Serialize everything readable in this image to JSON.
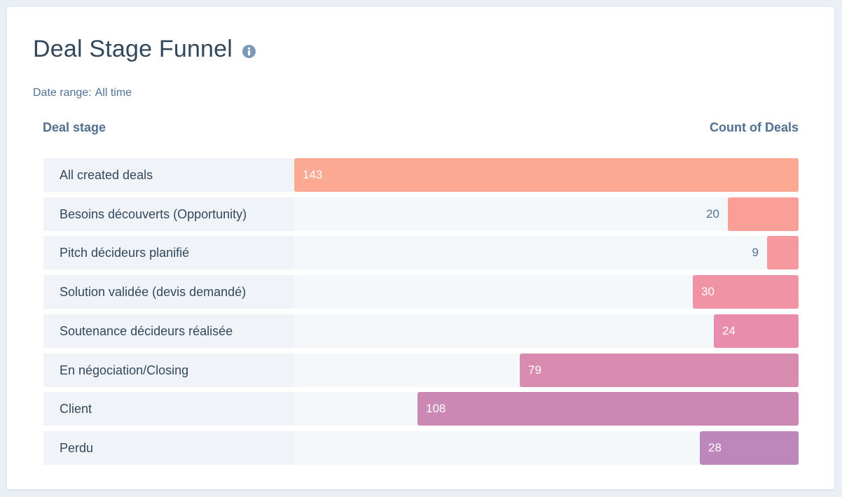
{
  "header": {
    "title": "Deal Stage Funnel",
    "info_icon": "info-circle-icon"
  },
  "filter": {
    "date_range_label": "Date range:",
    "date_range_value": "All time"
  },
  "columns": {
    "left": "Deal stage",
    "right": "Count of Deals"
  },
  "chart_data": {
    "type": "bar",
    "orientation": "horizontal",
    "bar_alignment": "right",
    "title": "Deal Stage Funnel",
    "xlabel": "Count of Deals",
    "ylabel": "Deal stage",
    "xlim": [
      0,
      143
    ],
    "categories": [
      "All created deals",
      "Besoins découverts (Opportunity)",
      "Pitch décideurs planifié",
      "Solution validée (devis demandé)",
      "Soutenance décideurs réalisée",
      "En négociation/Closing",
      "Client",
      "Perdu"
    ],
    "values": [
      143,
      20,
      9,
      30,
      24,
      79,
      108,
      28
    ],
    "colors": [
      "#fca993",
      "#fa9f98",
      "#f6999e",
      "#ef93a5",
      "#e88dab",
      "#d98aaf",
      "#cb88b5",
      "#be87bc"
    ],
    "grid": false,
    "legend": "none"
  }
}
